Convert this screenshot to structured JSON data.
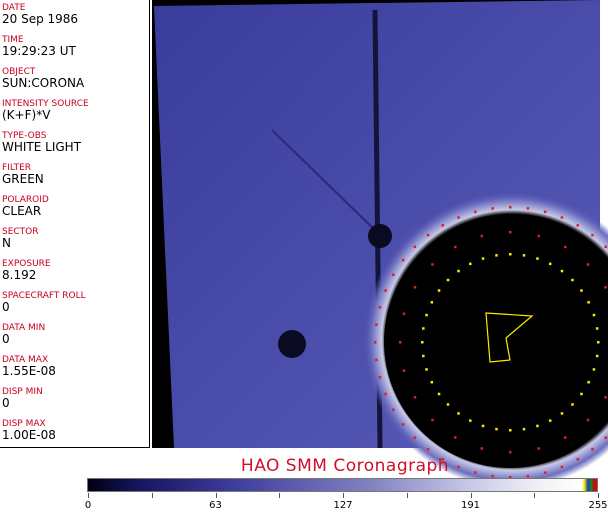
{
  "fields": [
    {
      "label": "DATE",
      "value": "20 Sep 1986"
    },
    {
      "label": "TIME",
      "value": "19:29:23 UT"
    },
    {
      "label": "OBJECT",
      "value": "SUN:CORONA"
    },
    {
      "label": "INTENSITY SOURCE",
      "value": "(K+F)*V"
    },
    {
      "label": "TYPE-OBS",
      "value": "WHITE LIGHT"
    },
    {
      "label": "FILTER",
      "value": "GREEN"
    },
    {
      "label": "POLAROID",
      "value": "CLEAR"
    },
    {
      "label": "SECTOR",
      "value": "N"
    },
    {
      "label": "EXPOSURE",
      "value": "8.192"
    },
    {
      "label": "SPACECRAFT ROLL",
      "value": "0"
    },
    {
      "label": "DATA MIN",
      "value": "0"
    },
    {
      "label": "DATA MAX",
      "value": "1.55E-08"
    },
    {
      "label": "DISP MIN",
      "value": "0"
    },
    {
      "label": "DISP MAX",
      "value": "1.00E-08"
    }
  ],
  "title": "HAO  SMM Coronagraph",
  "colorbar": {
    "ticks": [
      "0",
      "63",
      "127",
      "191",
      "255"
    ],
    "colors": {
      "low": "#000010",
      "mid": "#4040a0",
      "high": "#ffffff",
      "overlay_yellow": "#ffea00",
      "overlay_red": "#c01010"
    }
  }
}
